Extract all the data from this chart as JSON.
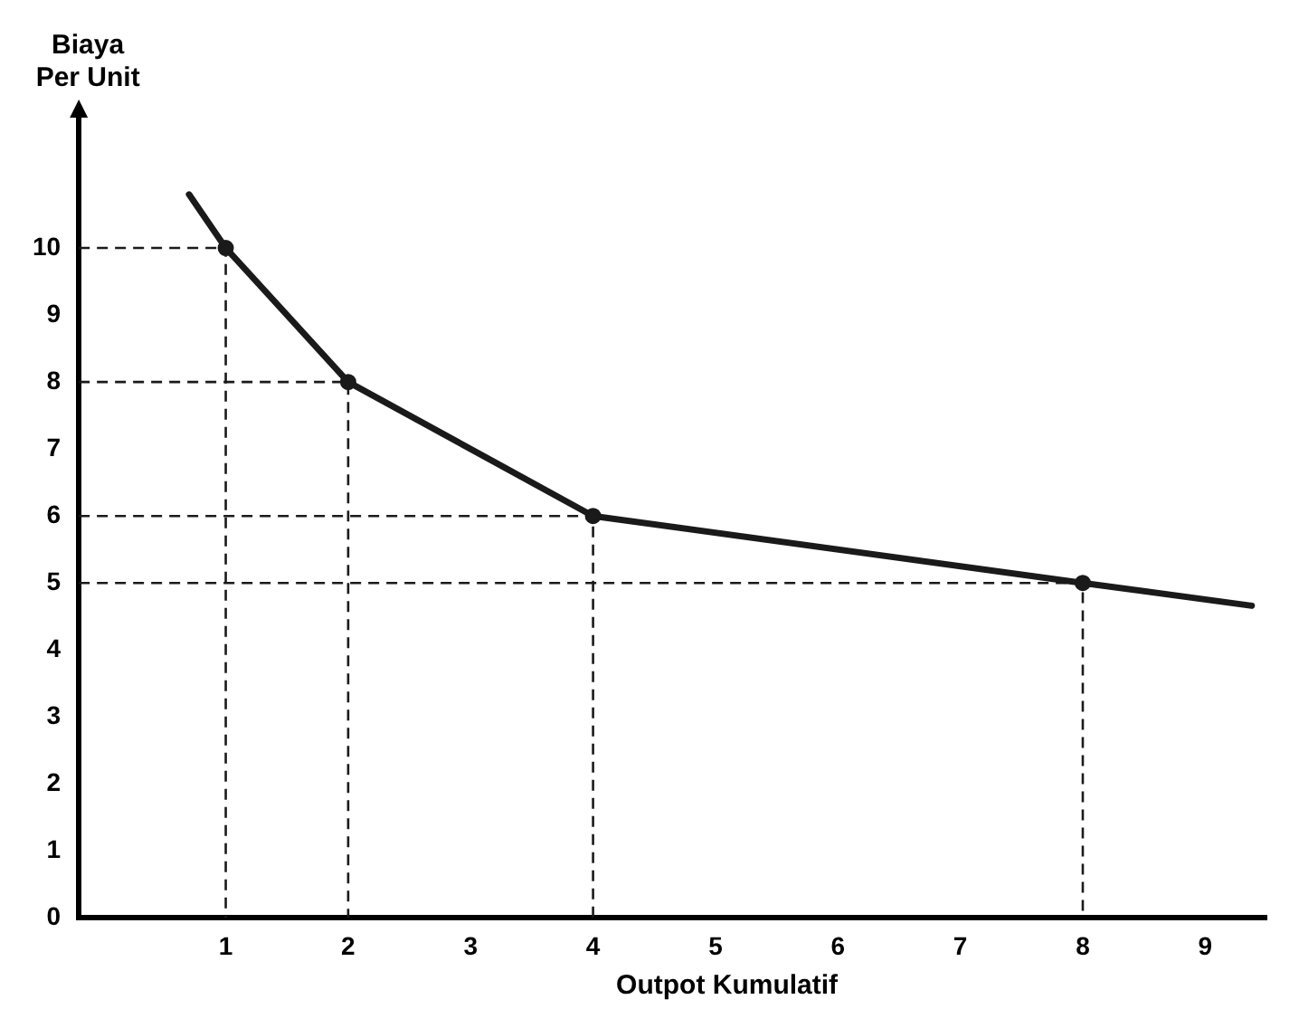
{
  "chart_data": {
    "type": "line",
    "xlabel": "Outpot Kumulatif",
    "ylabel": "Biaya Per Unit",
    "xlim": [
      -0.2,
      9.5
    ],
    "ylim": [
      0,
      12
    ],
    "xticks": [
      1,
      2,
      3,
      4,
      5,
      6,
      7,
      8,
      9
    ],
    "yticks": [
      0,
      1,
      2,
      3,
      4,
      5,
      6,
      7,
      8,
      9,
      10
    ],
    "grid": false,
    "legend": false,
    "series": [
      {
        "color": "#1a1a1a",
        "marker": "none",
        "x": [
          0.7,
          1,
          2,
          4,
          8,
          9.38
        ],
        "values": [
          10.8,
          10,
          8,
          6,
          5,
          4.66
        ]
      },
      {
        "type": "scatter",
        "color": "#1a1a1a",
        "marker": "circle",
        "x": [
          1,
          2,
          4,
          8
        ],
        "values": [
          10,
          8,
          6,
          5
        ]
      },
      {
        "color": "#1a1a1a",
        "marker": "none",
        "line_style": "dashed",
        "x": [
          -0.2,
          1,
          1
        ],
        "values": [
          10,
          10,
          0
        ]
      },
      {
        "color": "#1a1a1a",
        "marker": "none",
        "line_style": "dashed",
        "x": [
          -0.2,
          2,
          2
        ],
        "values": [
          8,
          8,
          0
        ]
      },
      {
        "color": "#1a1a1a",
        "marker": "none",
        "line_style": "dashed",
        "x": [
          -0.2,
          4,
          4
        ],
        "values": [
          6,
          6,
          0
        ]
      },
      {
        "color": "#1a1a1a",
        "marker": "none",
        "line_style": "dashed",
        "x": [
          -0.2,
          8,
          8
        ],
        "values": [
          5,
          5,
          0
        ]
      }
    ]
  }
}
